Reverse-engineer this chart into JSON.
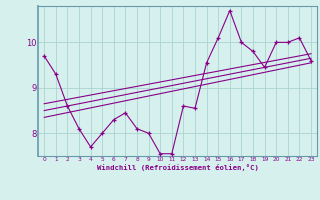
{
  "xlabel": "Windchill (Refroidissement éolien,°C)",
  "x_data": [
    0,
    1,
    2,
    3,
    4,
    5,
    6,
    7,
    8,
    9,
    10,
    11,
    12,
    13,
    14,
    15,
    16,
    17,
    18,
    19,
    20,
    21,
    22,
    23
  ],
  "y_main": [
    9.7,
    9.3,
    8.6,
    8.1,
    7.7,
    8.0,
    8.3,
    8.45,
    8.1,
    8.0,
    7.55,
    7.55,
    8.6,
    8.55,
    9.55,
    10.1,
    10.7,
    10.0,
    9.8,
    9.45,
    10.0,
    10.0,
    10.1,
    9.6
  ],
  "trend_lines": [
    [
      8.35,
      9.55
    ],
    [
      8.5,
      9.65
    ],
    [
      8.65,
      9.75
    ]
  ],
  "ylim": [
    7.5,
    10.8
  ],
  "xlim": [
    -0.5,
    23.5
  ],
  "yticks": [
    8,
    9,
    10
  ],
  "xticks": [
    0,
    1,
    2,
    3,
    4,
    5,
    6,
    7,
    8,
    9,
    10,
    11,
    12,
    13,
    14,
    15,
    16,
    17,
    18,
    19,
    20,
    21,
    22,
    23
  ],
  "line_color": "#880088",
  "bg_color": "#d6f0ee",
  "grid_color": "#aad4d0",
  "spine_color": "#6699aa"
}
